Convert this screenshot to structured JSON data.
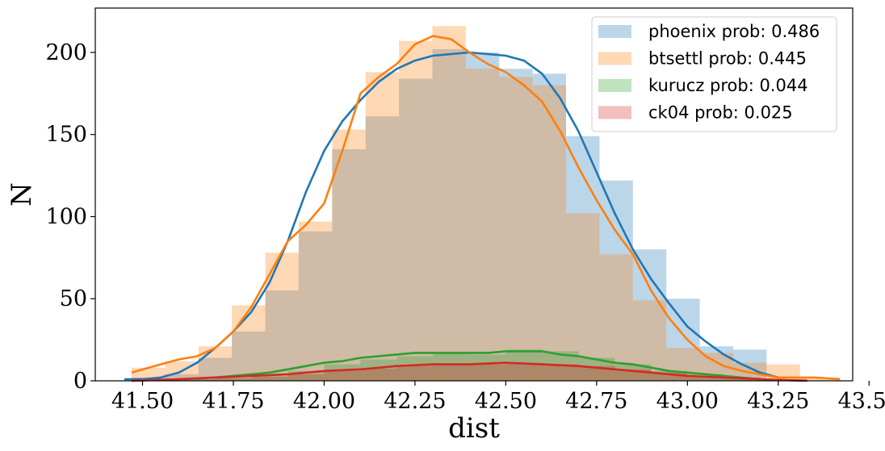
{
  "chart_data": {
    "type": "histogram",
    "xlabel": "dist",
    "ylabel": "N",
    "xlim": [
      41.37,
      43.455
    ],
    "ylim": [
      0,
      227
    ],
    "x_ticks": [
      41.5,
      41.75,
      42.0,
      42.25,
      42.5,
      42.75,
      43.0,
      43.25,
      43.5
    ],
    "x_tick_labels": [
      "41.50",
      "41.75",
      "42.00",
      "42.25",
      "42.50",
      "42.75",
      "43.00",
      "43.25",
      "43.50"
    ],
    "y_ticks": [
      0,
      50,
      100,
      150,
      200
    ],
    "y_tick_labels": [
      "0",
      "50",
      "100",
      "150",
      "200"
    ],
    "legend_position": "top-right",
    "series": [
      {
        "name": "phoenix prob: 0.486",
        "color": "#1f77b4",
        "bin_edges": [
          41.47,
          41.562,
          41.654,
          41.746,
          41.838,
          41.93,
          42.022,
          42.114,
          42.206,
          42.298,
          42.39,
          42.482,
          42.574,
          42.666,
          42.758,
          42.85,
          42.942,
          43.034,
          43.126,
          43.218
        ],
        "counts": [
          2,
          4,
          14,
          30,
          55,
          91,
          141,
          161,
          184,
          202,
          200,
          190,
          187,
          149,
          122,
          80,
          50,
          21,
          19
        ],
        "kde_x": [
          41.45,
          41.5,
          41.55,
          41.6,
          41.65,
          41.7,
          41.75,
          41.8,
          41.85,
          41.9,
          41.95,
          42.0,
          42.05,
          42.1,
          42.15,
          42.2,
          42.25,
          42.3,
          42.35,
          42.4,
          42.45,
          42.5,
          42.55,
          42.6,
          42.65,
          42.7,
          42.75,
          42.8,
          42.85,
          42.9,
          42.95,
          43.0,
          43.05,
          43.1,
          43.15,
          43.2,
          43.25
        ],
        "kde_y": [
          1,
          1,
          2,
          5,
          11,
          20,
          30,
          42,
          60,
          85,
          115,
          140,
          158,
          171,
          182,
          190,
          195,
          198,
          199,
          200,
          199,
          198,
          195,
          187,
          172,
          152,
          127,
          102,
          80,
          62,
          47,
          33,
          24,
          16,
          10,
          5,
          2
        ]
      },
      {
        "name": "btsettl prob: 0.445",
        "color": "#ff7f0e",
        "bin_edges": [
          41.47,
          41.562,
          41.654,
          41.746,
          41.838,
          41.93,
          42.022,
          42.114,
          42.206,
          42.298,
          42.39,
          42.482,
          42.574,
          42.666,
          42.758,
          42.85,
          42.942,
          43.034,
          43.126,
          43.218,
          43.31,
          43.42
        ],
        "counts": [
          8,
          12,
          21,
          46,
          78,
          97,
          153,
          188,
          207,
          216,
          190,
          185,
          180,
          102,
          77,
          49,
          20,
          17,
          11,
          10,
          2
        ],
        "kde_x": [
          41.47,
          41.55,
          41.6,
          41.65,
          41.7,
          41.75,
          41.8,
          41.85,
          41.9,
          41.95,
          42.0,
          42.05,
          42.1,
          42.15,
          42.2,
          42.25,
          42.3,
          42.35,
          42.4,
          42.45,
          42.5,
          42.55,
          42.6,
          42.65,
          42.7,
          42.75,
          42.8,
          42.85,
          42.9,
          42.95,
          43.0,
          43.05,
          43.1,
          43.15,
          43.2,
          43.25,
          43.3,
          43.35,
          43.42
        ],
        "kde_y": [
          5,
          10,
          13,
          15,
          20,
          30,
          45,
          65,
          85,
          95,
          108,
          140,
          175,
          185,
          193,
          205,
          210,
          208,
          200,
          193,
          188,
          180,
          170,
          152,
          130,
          110,
          92,
          77,
          55,
          38,
          25,
          15,
          9,
          6,
          4,
          2,
          2,
          2,
          1
        ]
      },
      {
        "name": "kurucz prob: 0.044",
        "color": "#2ca02c",
        "bin_edges": [
          41.47,
          41.6,
          41.7,
          41.8,
          41.9,
          42.0,
          42.1,
          42.2,
          42.3,
          42.4,
          42.5,
          42.6,
          42.7,
          42.8,
          42.9,
          43.0,
          43.1,
          43.2,
          43.32
        ],
        "counts": [
          1,
          1,
          2,
          3,
          6,
          10,
          13,
          15,
          17,
          16,
          19,
          18,
          14,
          10,
          6,
          4,
          2,
          1
        ],
        "kde_x": [
          41.47,
          41.6,
          41.7,
          41.8,
          41.85,
          41.9,
          41.95,
          42.0,
          42.05,
          42.1,
          42.15,
          42.2,
          42.25,
          42.3,
          42.35,
          42.4,
          42.45,
          42.5,
          42.55,
          42.6,
          42.65,
          42.7,
          42.75,
          42.8,
          42.85,
          42.9,
          42.95,
          43.0,
          43.1,
          43.2,
          43.32
        ],
        "kde_y": [
          0,
          1,
          2,
          4,
          5,
          7,
          9,
          11,
          12,
          14,
          15,
          16,
          17,
          17,
          17,
          17,
          17,
          18,
          18,
          18,
          16,
          15,
          13,
          11,
          10,
          8,
          6,
          5,
          3,
          1,
          0
        ]
      },
      {
        "name": "ck04 prob: 0.025",
        "color": "#d62728",
        "bin_edges": [
          41.47,
          41.6,
          41.7,
          41.8,
          41.9,
          42.0,
          42.1,
          42.2,
          42.3,
          42.4,
          42.5,
          42.6,
          42.7,
          42.8,
          42.9,
          43.0,
          43.1,
          43.2,
          43.33
        ],
        "counts": [
          0.5,
          1,
          1.5,
          2.5,
          4,
          6,
          7.5,
          9,
          9.5,
          10,
          11,
          10,
          9,
          7,
          5,
          3,
          2,
          1
        ],
        "kde_x": [
          41.47,
          41.6,
          41.7,
          41.8,
          41.9,
          42.0,
          42.1,
          42.2,
          42.3,
          42.4,
          42.5,
          42.6,
          42.7,
          42.8,
          42.9,
          43.0,
          43.1,
          43.2,
          43.33
        ],
        "kde_y": [
          0,
          1,
          2,
          3,
          4,
          6,
          7,
          9,
          10,
          10,
          11,
          10,
          9,
          7,
          5,
          3,
          2,
          1,
          0
        ]
      }
    ]
  }
}
